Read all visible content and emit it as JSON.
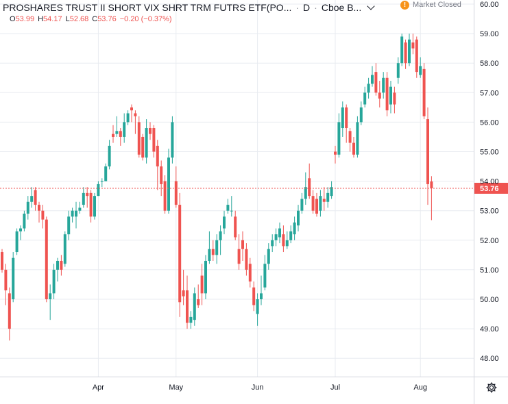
{
  "header": {
    "title": "PROSHARES TRUST II SHORT VIX SHRT TRM FUTRS ETF(PO...",
    "dot1": "·",
    "interval": "D",
    "dot2": "·",
    "exchange": "Cboe B...",
    "ohlc": {
      "o_label": "O",
      "o": "53.99",
      "h_label": "H",
      "h": "54.17",
      "l_label": "L",
      "l": "52.68",
      "c_label": "C",
      "c": "53.76",
      "change": "−0.20 (−0.37%)"
    }
  },
  "market_status": {
    "icon": "alert-icon",
    "badge": "!",
    "label": "Market Closed"
  },
  "settings": {
    "icon": "gear-icon"
  },
  "colors": {
    "up": "#26a69a",
    "down": "#ef5350",
    "grid": "#e8ebf0",
    "axis": "#787b86",
    "price_line": "#ef5350"
  },
  "chart_data": {
    "type": "candlestick",
    "y_ticks": [
      "48.00",
      "49.00",
      "50.00",
      "51.00",
      "52.00",
      "53.00",
      "54.00",
      "55.00",
      "56.00",
      "57.00",
      "58.00",
      "59.00",
      "60.00"
    ],
    "ylim": [
      47.55,
      60.1
    ],
    "x_ticks": [
      {
        "label": "Apr",
        "index": 26
      },
      {
        "label": "May",
        "index": 47
      },
      {
        "label": "Jun",
        "index": 69
      },
      {
        "label": "Jul",
        "index": 90
      },
      {
        "label": "Aug",
        "index": 113
      }
    ],
    "last_price": {
      "value": 53.76,
      "label": "53.76"
    },
    "grid": true,
    "candles": [
      [
        0,
        51.6,
        51.0,
        51.7,
        50.9
      ],
      [
        1,
        51.0,
        50.3,
        51.2,
        49.8
      ],
      [
        2,
        50.2,
        49.0,
        50.4,
        48.6
      ],
      [
        3,
        50.0,
        51.4,
        51.6,
        49.9
      ],
      [
        4,
        51.6,
        52.3,
        52.4,
        51.5
      ],
      [
        5,
        52.3,
        52.4,
        52.5,
        52.0
      ],
      [
        6,
        52.4,
        52.9,
        53.0,
        52.3
      ],
      [
        7,
        52.9,
        53.3,
        53.5,
        52.7
      ],
      [
        8,
        53.3,
        53.5,
        53.8,
        53.1
      ],
      [
        9,
        53.7,
        53.2,
        53.8,
        53.0
      ],
      [
        10,
        53.2,
        53.0,
        53.3,
        52.6
      ],
      [
        11,
        53.0,
        52.7,
        53.2,
        52.4
      ],
      [
        12,
        52.7,
        50.0,
        52.8,
        49.9
      ],
      [
        13,
        50.0,
        50.2,
        50.5,
        49.3
      ],
      [
        14,
        50.2,
        51.0,
        51.2,
        50.0
      ],
      [
        15,
        51.0,
        51.3,
        51.4,
        50.6
      ],
      [
        16,
        51.3,
        51.0,
        51.5,
        50.8
      ],
      [
        17,
        51.2,
        52.2,
        52.3,
        51.1
      ],
      [
        18,
        52.2,
        52.8,
        53.0,
        52.0
      ],
      [
        19,
        52.8,
        53.0,
        53.1,
        52.6
      ],
      [
        20,
        52.8,
        53.0,
        53.3,
        52.4
      ],
      [
        21,
        53.0,
        53.1,
        53.3,
        52.9
      ],
      [
        22,
        53.2,
        53.6,
        53.8,
        53.1
      ],
      [
        23,
        53.6,
        53.5,
        53.8,
        53.1
      ],
      [
        24,
        53.6,
        52.8,
        53.7,
        52.6
      ],
      [
        25,
        52.8,
        53.5,
        53.6,
        52.7
      ],
      [
        26,
        53.5,
        53.9,
        54.0,
        53.5
      ],
      [
        27,
        54.0,
        54.0,
        54.1,
        53.8
      ],
      [
        28,
        54.0,
        54.5,
        54.6,
        54.0
      ],
      [
        29,
        54.5,
        55.2,
        55.4,
        54.4
      ],
      [
        30,
        55.6,
        55.5,
        55.9,
        55.3
      ],
      [
        31,
        55.6,
        55.7,
        56.2,
        55.5
      ],
      [
        32,
        55.7,
        55.5,
        55.8,
        55.2
      ],
      [
        33,
        55.5,
        56.0,
        56.3,
        55.3
      ],
      [
        34,
        56.0,
        56.3,
        56.4,
        55.9
      ],
      [
        35,
        56.5,
        56.4,
        56.6,
        56.0
      ],
      [
        36,
        56.3,
        56.2,
        56.4,
        55.6
      ],
      [
        37,
        56.0,
        54.9,
        56.2,
        54.8
      ],
      [
        38,
        55.5,
        54.8,
        55.6,
        54.7
      ],
      [
        39,
        54.8,
        55.8,
        56.1,
        54.6
      ],
      [
        40,
        55.8,
        55.6,
        56.0,
        55.4
      ],
      [
        41,
        55.8,
        55.0,
        55.9,
        54.8
      ],
      [
        42,
        55.2,
        54.5,
        55.4,
        53.7
      ],
      [
        43,
        54.5,
        53.9,
        54.7,
        53.5
      ],
      [
        44,
        54.0,
        53.0,
        54.2,
        52.9
      ],
      [
        45,
        53.0,
        54.8,
        55.1,
        52.9
      ],
      [
        46,
        54.8,
        56.0,
        56.2,
        54.6
      ],
      [
        47,
        54.0,
        53.2,
        54.5,
        53.1
      ],
      [
        48,
        53.2,
        49.9,
        53.6,
        49.4
      ],
      [
        49,
        50.3,
        50.1,
        51.0,
        49.8
      ],
      [
        50,
        50.3,
        49.2,
        50.8,
        49.0
      ],
      [
        51,
        49.2,
        49.4,
        49.6,
        49.0
      ],
      [
        52,
        49.3,
        50.2,
        50.4,
        49.1
      ],
      [
        53,
        50.0,
        49.8,
        50.5,
        49.7
      ],
      [
        54,
        50.8,
        50.2,
        51.2,
        49.8
      ],
      [
        55,
        50.2,
        51.3,
        51.5,
        50.0
      ],
      [
        56,
        51.3,
        51.7,
        52.3,
        51.2
      ],
      [
        57,
        51.7,
        51.5,
        52.0,
        51.3
      ],
      [
        58,
        51.5,
        52.0,
        52.2,
        51.2
      ],
      [
        59,
        52.0,
        52.3,
        52.5,
        51.5
      ],
      [
        60,
        52.4,
        52.8,
        53.0,
        52.2
      ],
      [
        61,
        53.0,
        53.2,
        53.4,
        52.9
      ],
      [
        62,
        53.0,
        53.0,
        53.5,
        52.8
      ],
      [
        63,
        52.8,
        52.1,
        53.0,
        52.0
      ],
      [
        64,
        51.7,
        51.2,
        52.2,
        51.0
      ],
      [
        65,
        52.0,
        51.7,
        52.3,
        51.3
      ],
      [
        66,
        51.7,
        51.0,
        51.9,
        50.8
      ],
      [
        67,
        51.2,
        50.6,
        51.4,
        50.4
      ],
      [
        68,
        50.4,
        49.8,
        50.6,
        49.6
      ],
      [
        69,
        49.5,
        50.0,
        50.2,
        49.1
      ],
      [
        70,
        50.0,
        50.2,
        50.8,
        49.8
      ],
      [
        71,
        50.4,
        51.2,
        51.5,
        50.3
      ],
      [
        72,
        51.2,
        51.7,
        51.9,
        51.0
      ],
      [
        73,
        51.8,
        52.0,
        52.2,
        51.6
      ],
      [
        74,
        52.0,
        52.2,
        52.4,
        51.8
      ],
      [
        75,
        52.1,
        52.4,
        52.6,
        51.9
      ],
      [
        76,
        52.2,
        51.8,
        52.5,
        51.6
      ],
      [
        77,
        51.8,
        52.0,
        52.3,
        51.7
      ],
      [
        78,
        52.0,
        52.3,
        52.5,
        51.9
      ],
      [
        79,
        52.2,
        52.6,
        52.8,
        52.0
      ],
      [
        80,
        52.5,
        53.0,
        53.2,
        52.3
      ],
      [
        81,
        53.0,
        53.4,
        53.6,
        52.9
      ],
      [
        82,
        53.4,
        53.8,
        54.3,
        53.2
      ],
      [
        83,
        54.1,
        53.5,
        54.6,
        53.4
      ],
      [
        84,
        53.5,
        53.0,
        53.7,
        52.9
      ],
      [
        85,
        53.4,
        52.9,
        53.6,
        52.8
      ],
      [
        86,
        53.0,
        53.5,
        53.7,
        52.8
      ],
      [
        87,
        53.4,
        53.3,
        53.8,
        53.0
      ],
      [
        88,
        53.3,
        53.6,
        53.8,
        53.1
      ],
      [
        89,
        53.5,
        53.8,
        54.0,
        53.4
      ],
      [
        90,
        55.0,
        54.9,
        55.2,
        54.6
      ],
      [
        91,
        54.9,
        56.0,
        56.3,
        54.8
      ],
      [
        92,
        55.8,
        56.5,
        56.7,
        55.5
      ],
      [
        93,
        56.5,
        55.8,
        56.6,
        55.3
      ],
      [
        94,
        55.7,
        55.3,
        55.8,
        55.0
      ],
      [
        95,
        55.3,
        54.9,
        55.5,
        54.8
      ],
      [
        96,
        54.9,
        56.0,
        56.2,
        54.8
      ],
      [
        97,
        56.0,
        56.5,
        56.7,
        55.9
      ],
      [
        98,
        56.6,
        57.0,
        57.2,
        56.5
      ],
      [
        99,
        57.0,
        57.3,
        57.5,
        56.8
      ],
      [
        100,
        57.3,
        57.6,
        57.9,
        57.2
      ],
      [
        101,
        57.7,
        57.0,
        58.0,
        56.9
      ],
      [
        102,
        57.0,
        56.8,
        57.4,
        56.5
      ],
      [
        103,
        57.0,
        57.5,
        57.7,
        56.8
      ],
      [
        104,
        57.5,
        56.4,
        57.7,
        56.2
      ],
      [
        105,
        56.6,
        57.2,
        57.4,
        56.3
      ],
      [
        106,
        57.0,
        56.6,
        57.2,
        56.3
      ],
      [
        107,
        57.5,
        58.0,
        58.2,
        57.3
      ],
      [
        108,
        58.0,
        58.9,
        59.0,
        57.9
      ],
      [
        109,
        58.7,
        58.0,
        58.8,
        57.8
      ],
      [
        110,
        58.0,
        58.8,
        59.0,
        57.9
      ],
      [
        111,
        58.7,
        58.5,
        59.0,
        58.3
      ],
      [
        112,
        58.8,
        57.7,
        58.9,
        57.5
      ],
      [
        113,
        57.6,
        57.9,
        58.2,
        57.5
      ],
      [
        114,
        57.8,
        56.2,
        58.0,
        56.1
      ],
      [
        115,
        56.1,
        53.9,
        56.5,
        53.2
      ],
      [
        116,
        53.99,
        53.76,
        54.17,
        52.68
      ]
    ]
  }
}
